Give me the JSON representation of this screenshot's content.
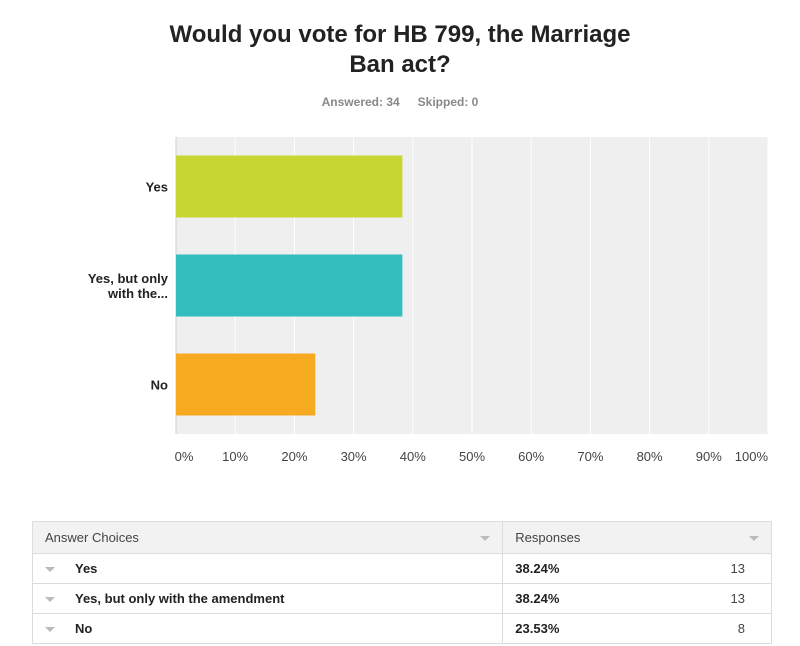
{
  "chart_data": {
    "type": "bar",
    "orientation": "horizontal",
    "title_lines": [
      "Would you vote for HB 799, the Marriage",
      "Ban act?"
    ],
    "answered_label": "Answered: 34",
    "skipped_label": "Skipped: 0",
    "categories": [
      "Yes",
      "Yes, but only with the...",
      "No"
    ],
    "category_lines": [
      [
        "Yes"
      ],
      [
        "Yes, but only",
        "with the..."
      ],
      [
        "No"
      ]
    ],
    "values": [
      38.24,
      38.24,
      23.53
    ],
    "bar_colors": [
      "#c8d631",
      "#33bdbd",
      "#f5aa20"
    ],
    "xlim": [
      0,
      100
    ],
    "xticks": [
      "0%",
      "10%",
      "20%",
      "30%",
      "40%",
      "50%",
      "60%",
      "70%",
      "80%",
      "90%",
      "100%"
    ],
    "grid": true,
    "plot_background": "#efefef"
  },
  "table": {
    "headers": [
      "Answer Choices",
      "Responses"
    ],
    "rows": [
      {
        "choice": "Yes",
        "percent": "38.24%",
        "count": "13"
      },
      {
        "choice": "Yes, but only with the amendment",
        "percent": "38.24%",
        "count": "13"
      },
      {
        "choice": "No",
        "percent": "23.53%",
        "count": "8"
      }
    ]
  }
}
